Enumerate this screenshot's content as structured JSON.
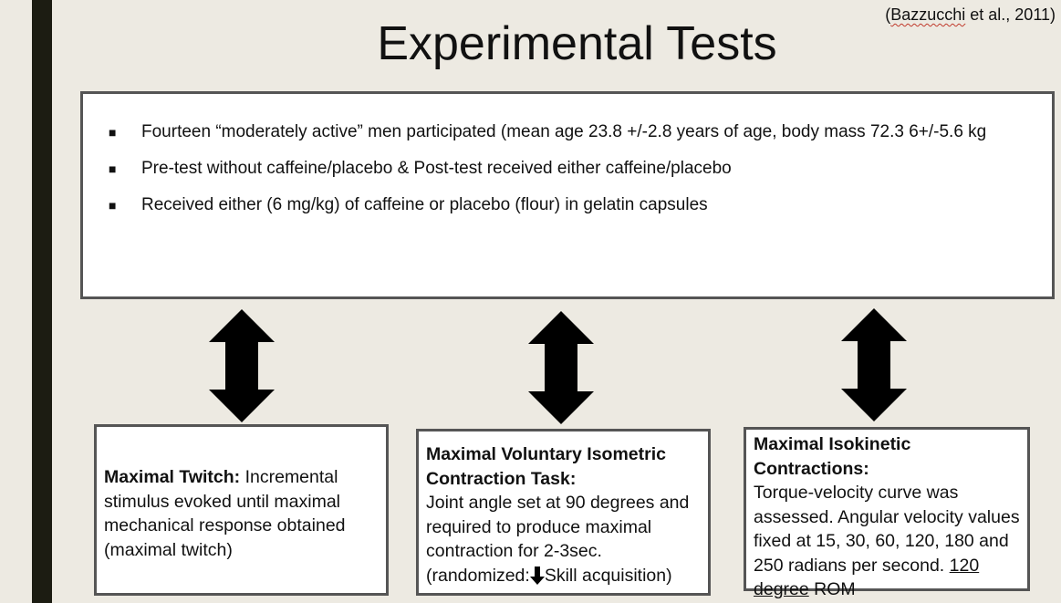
{
  "citation": {
    "author": "Bazzucchi",
    "rest": " et al., 2011)",
    "open": "("
  },
  "title": "Experimental Tests",
  "bullets": [
    "Fourteen “moderately active” men participated  (mean age 23.8 +/-2.8 years of age, body mass 72.3 6+/-5.6 kg",
    "Pre-test without caffeine/placebo & Post-test received either caffeine/placebo",
    "Received either (6 mg/kg) of caffeine or placebo (flour) in gelatin capsules"
  ],
  "bullet_glyph": "■",
  "boxes": {
    "twitch": {
      "heading": "Maximal Twitch:",
      "text": " Incremental stimulus evoked until maximal mechanical response obtained (maximal twitch)"
    },
    "isometric": {
      "heading": "Maximal Voluntary Isometric Contraction Task:",
      "text": "Joint angle set at 90 degrees and required to produce maximal contraction for 2-3sec. (randomized:",
      "after_arrow": "Skill acquisition)"
    },
    "isokinetic": {
      "heading": "Maximal Isokinetic Contractions:",
      "text": "Torque-velocity curve was assessed. Angular velocity values fixed at 15, 30, 60, 120, 180 and 250 radians per second. ",
      "link": "120 degree",
      "after_link": " ROM"
    }
  },
  "colors": {
    "background": "#edeae2",
    "left_bar": "#1c1c12",
    "arrow": "#000000"
  },
  "icons": {
    "connector": "double-headed-vertical-arrow",
    "inline": "down-arrow"
  }
}
